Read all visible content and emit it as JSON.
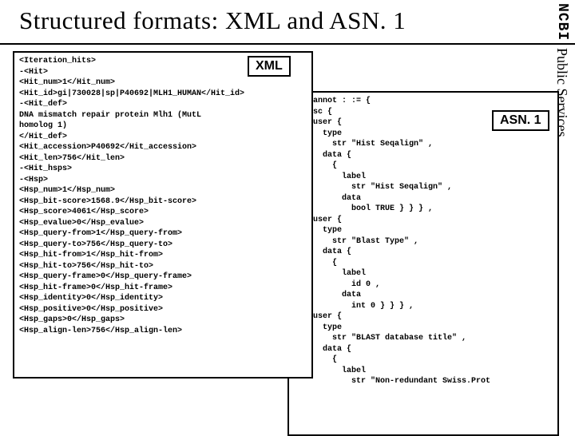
{
  "title": "Structured formats: XML and ASN. 1",
  "sidebar": {
    "ncbi": "NCBI",
    "ps": "Public Services"
  },
  "labels": {
    "xml": "XML",
    "asn": "ASN. 1"
  },
  "xml_code": "<Iteration_hits>\n-<Hit>\n<Hit_num>1</Hit_num>\n<Hit_id>gi|730028|sp|P40692|MLH1_HUMAN</Hit_id>\n-<Hit_def>\nDNA mismatch repair protein Mlh1 (MutL\nhomolog 1)\n</Hit_def>\n<Hit_accession>P40692</Hit_accession>\n<Hit_len>756</Hit_len>\n-<Hit_hsps>\n-<Hsp>\n<Hsp_num>1</Hsp_num>\n<Hsp_bit-score>1568.9</Hsp_bit-score>\n<Hsp_score>4061</Hsp_score>\n<Hsp_evalue>0</Hsp_evalue>\n<Hsp_query-from>1</Hsp_query-from>\n<Hsp_query-to>756</Hsp_query-to>\n<Hsp_hit-from>1</Hsp_hit-from>\n<Hsp_hit-to>756</Hsp_hit-to>\n<Hsp_query-frame>0</Hsp_query-frame>\n<Hsp_hit-frame>0</Hsp_hit-frame>\n<Hsp_identity>0</Hsp_identity>\n<Hsp_positive>0</Hsp_positive>\n<Hsp_gaps>0</Hsp_gaps>\n<Hsp_align-len>756</Hsp_align-len>",
  "asn_code": "Seq-annot : := {\n  desc {\n    user {\n      type\n        str \"Hist Seqalign\" ,\n      data {\n        {\n          label\n            str \"Hist Seqalign\" ,\n          data\n            bool TRUE } } } ,\n    user {\n      type\n        str \"Blast Type\" ,\n      data {\n        {\n          label\n            id 0 ,\n          data\n            int 0 } } } ,\n    user {\n      type\n        str \"BLAST database title\" ,\n      data {\n        {\n          label\n            str \"Non-redundant Swiss.Prot",
  "colors": {
    "background": "#ffffff",
    "border": "#000000",
    "text": "#000000"
  }
}
